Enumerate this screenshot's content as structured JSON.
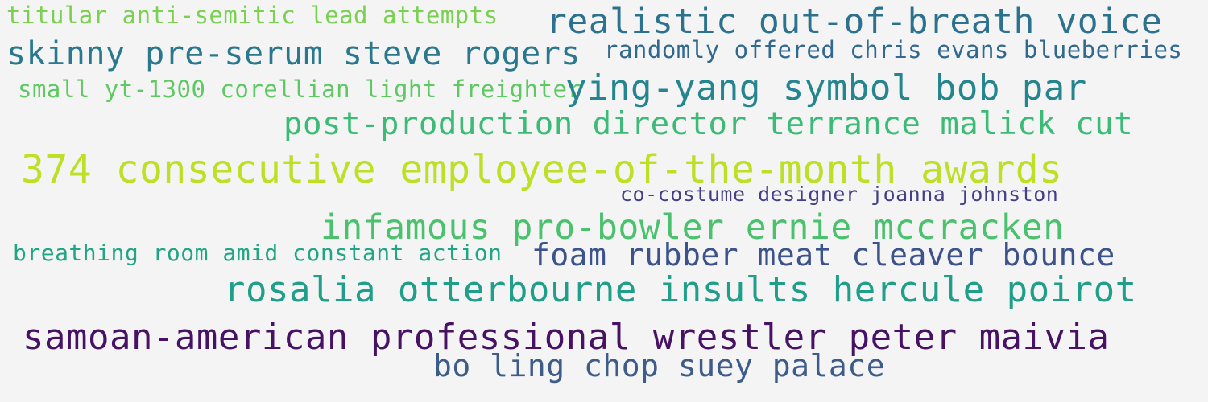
{
  "words": [
    {
      "text": "titular anti-semitic lead attempts",
      "color": "#7ad151"
    },
    {
      "text": "realistic out-of-breath voice",
      "color": "#2c728e"
    },
    {
      "text": "skinny pre-serum steve rogers",
      "color": "#2a788e"
    },
    {
      "text": "randomly offered chris evans blueberries",
      "color": "#31688e"
    },
    {
      "text": "small yt-1300 corellian light freighter",
      "color": "#5ec962"
    },
    {
      "text": "ying-yang symbol bob par",
      "color": "#25858e"
    },
    {
      "text": "post-production director terrance malick cut",
      "color": "#3bbb75"
    },
    {
      "text": "374 consecutive employee-of-the-month awards",
      "color": "#bddf26"
    },
    {
      "text": "co-costume designer joanna johnston",
      "color": "#433e85"
    },
    {
      "text": "infamous pro-bowler ernie mccracken",
      "color": "#4ac16d"
    },
    {
      "text": "breathing room amid constant action",
      "color": "#21a685"
    },
    {
      "text": "foam rubber meat cleaver bounce",
      "color": "#3b528b"
    },
    {
      "text": "rosalia otterbourne insults hercule poirot",
      "color": "#1f9e89"
    },
    {
      "text": "samoan-american professional wrestler peter maivia",
      "color": "#471164"
    },
    {
      "text": "bo ling chop suey palace",
      "color": "#3e5c8a"
    }
  ]
}
